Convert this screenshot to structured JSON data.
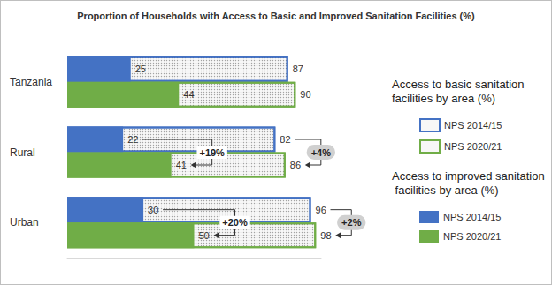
{
  "chart_data": {
    "type": "bar",
    "orientation": "horizontal",
    "title": "Proportion of Households with Access to Basic and Improved Sanitation Facilities (%)",
    "categories": [
      "Tanzania",
      "Rural",
      "Urban"
    ],
    "series": [
      {
        "name": "NPS 2014/15",
        "group": "Access to basic sanitation facilities by area (%)",
        "color": "#4472c4",
        "values": [
          87,
          82,
          96
        ]
      },
      {
        "name": "NPS 2020/21",
        "group": "Access to basic sanitation facilities by area (%)",
        "color": "#70ad47",
        "values": [
          90,
          86,
          98
        ]
      },
      {
        "name": "NPS 2014/15",
        "group": "Access to improved sanitation facilities by area (%)",
        "color": "#4472c4",
        "values": [
          25,
          22,
          30
        ]
      },
      {
        "name": "NPS 2020/21",
        "group": "Access to improved sanitation facilities by area (%)",
        "color": "#70ad47",
        "values": [
          44,
          41,
          50
        ]
      }
    ],
    "annotations": [
      {
        "text": "+19%",
        "category": "Rural",
        "group": "Access to improved sanitation facilities by area (%)"
      },
      {
        "text": "+4%",
        "category": "Rural",
        "group": "Access to basic sanitation facilities by area (%)"
      },
      {
        "text": "+20%",
        "category": "Urban",
        "group": "Access to improved sanitation facilities by area (%)"
      },
      {
        "text": "+2%",
        "category": "Urban",
        "group": "Access to basic sanitation facilities by area (%)"
      }
    ],
    "xlim": [
      0,
      100
    ],
    "data_labels": true,
    "tick_labels": false,
    "grid": false
  }
}
